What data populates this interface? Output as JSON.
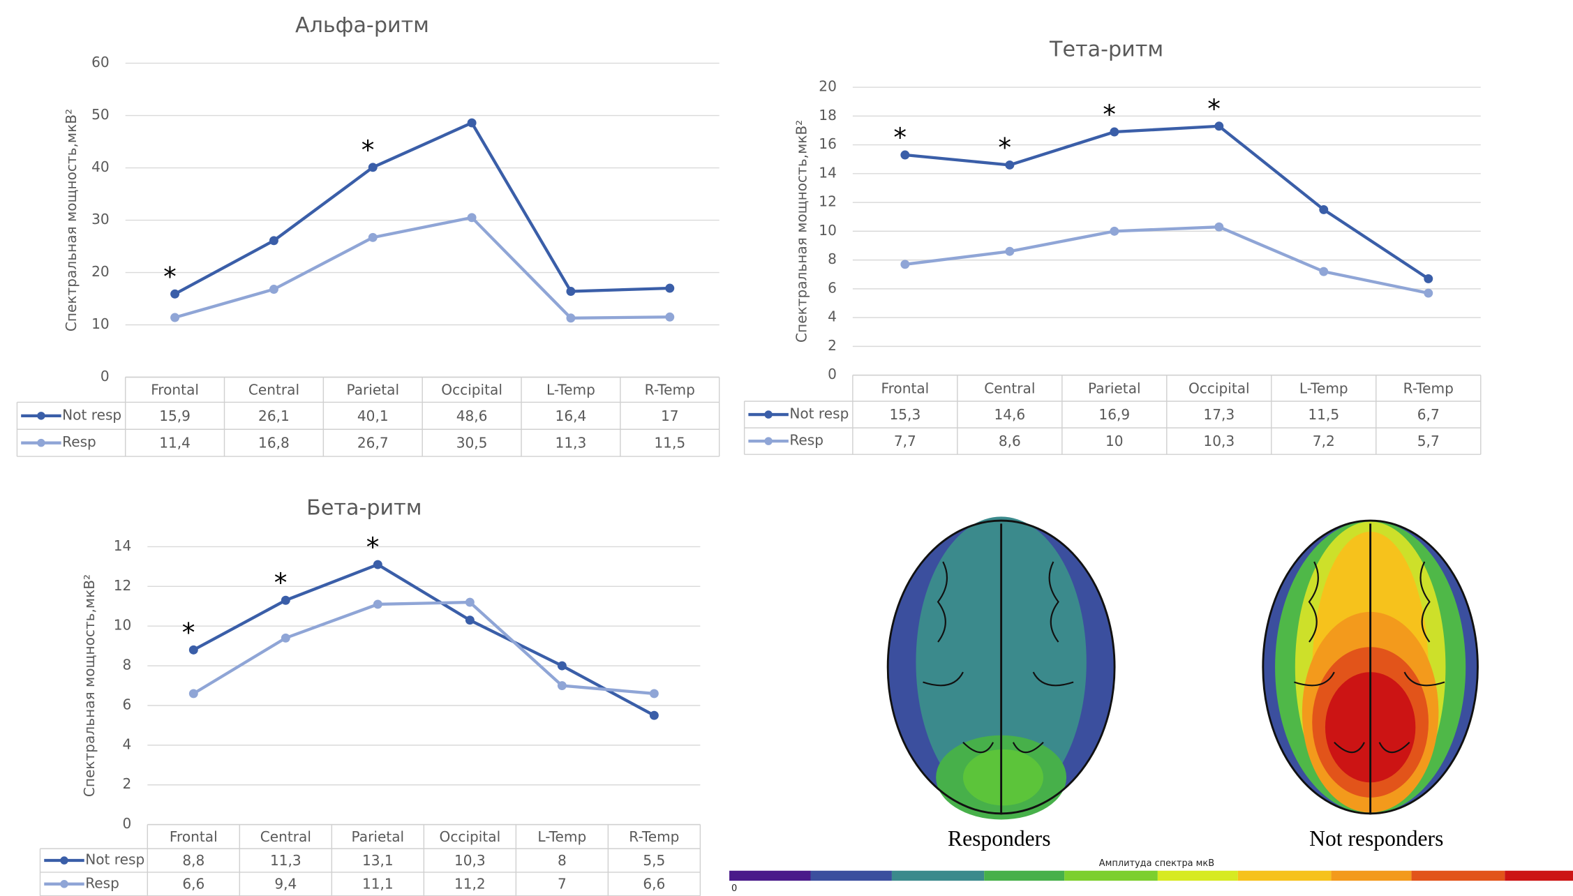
{
  "chart_data": [
    {
      "type": "line",
      "title": "Альфа-ритм",
      "y_label": "Спектральная мощность,мкВ²",
      "categories": [
        "Frontal",
        "Central",
        "Parietal",
        "Occipital",
        "L-Temp",
        "R-Temp"
      ],
      "series": [
        {
          "name": "Not resp",
          "color": "#3a5ea8",
          "values": [
            15.9,
            26.1,
            40.1,
            48.6,
            16.4,
            17
          ],
          "value_labels": [
            "15,9",
            "26,1",
            "40,1",
            "48,6",
            "16,4",
            "17"
          ]
        },
        {
          "name": "Resp",
          "color": "#8fa5d6",
          "values": [
            11.4,
            16.8,
            26.7,
            30.5,
            11.3,
            11.5
          ],
          "value_labels": [
            "11,4",
            "16,8",
            "26,7",
            "30,5",
            "11,3",
            "11,5"
          ]
        }
      ],
      "ylim": [
        0,
        60
      ],
      "yticks": [
        0,
        10,
        20,
        30,
        40,
        50,
        60
      ],
      "grid": true,
      "annotations": [
        {
          "text": "*",
          "category": "Frontal"
        },
        {
          "text": "*",
          "category": "Parietal"
        }
      ]
    },
    {
      "type": "line",
      "title": "Тета-ритм",
      "y_label": "Спектральная мощность,мкВ²",
      "categories": [
        "Frontal",
        "Central",
        "Parietal",
        "Occipital",
        "L-Temp",
        "R-Temp"
      ],
      "series": [
        {
          "name": "Not resp",
          "color": "#3a5ea8",
          "values": [
            15.3,
            14.6,
            16.9,
            17.3,
            11.5,
            6.7
          ],
          "value_labels": [
            "15,3",
            "14,6",
            "16,9",
            "17,3",
            "11,5",
            "6,7"
          ]
        },
        {
          "name": "Resp",
          "color": "#8fa5d6",
          "values": [
            7.7,
            8.6,
            10,
            10.3,
            7.2,
            5.7
          ],
          "value_labels": [
            "7,7",
            "8,6",
            "10",
            "10,3",
            "7,2",
            "5,7"
          ]
        }
      ],
      "ylim": [
        0,
        20
      ],
      "yticks": [
        0,
        2,
        4,
        6,
        8,
        10,
        12,
        14,
        16,
        18,
        20
      ],
      "grid": true,
      "annotations": [
        {
          "text": "*",
          "category": "Frontal"
        },
        {
          "text": "*",
          "category": "Central"
        },
        {
          "text": "*",
          "category": "Parietal"
        },
        {
          "text": "*",
          "category": "Occipital"
        }
      ]
    },
    {
      "type": "line",
      "title": "Бета-ритм",
      "y_label": "Спектральная мощность,мкВ²",
      "categories": [
        "Frontal",
        "Central",
        "Parietal",
        "Occipital",
        "L-Temp",
        "R-Temp"
      ],
      "series": [
        {
          "name": "Not resp",
          "color": "#3a5ea8",
          "values": [
            8.8,
            11.3,
            13.1,
            10.3,
            8,
            5.5
          ],
          "value_labels": [
            "8,8",
            "11,3",
            "13,1",
            "10,3",
            "8",
            "5,5"
          ]
        },
        {
          "name": "Resp",
          "color": "#8fa5d6",
          "values": [
            6.6,
            9.4,
            11.1,
            11.2,
            7,
            6.6
          ],
          "value_labels": [
            "6,6",
            "9,4",
            "11,1",
            "11,2",
            "7",
            "6,6"
          ]
        }
      ],
      "ylim": [
        0,
        14
      ],
      "yticks": [
        0,
        2,
        4,
        6,
        8,
        10,
        12,
        14
      ],
      "grid": true,
      "annotations": [
        {
          "text": "*",
          "category": "Frontal"
        },
        {
          "text": "*",
          "category": "Central"
        },
        {
          "text": "*",
          "category": "Parietal"
        }
      ]
    }
  ],
  "brain_map": {
    "labels": [
      "Responders",
      "Not responders"
    ],
    "scale_title": "Амплитуда спектра мкВ",
    "scale_min": 0
  }
}
